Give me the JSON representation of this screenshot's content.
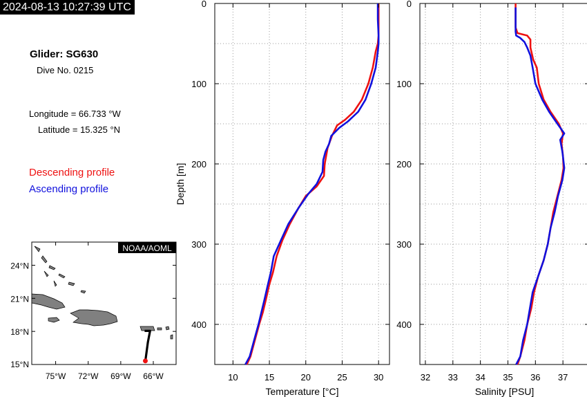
{
  "header": {
    "timestamp": "2024-08-13 10:27:39 UTC"
  },
  "info": {
    "glider": "Glider: SG630",
    "dive": "Dive No. 0215",
    "longitude": "Longitude = 66.733 °W",
    "latitude": "Latitude = 15.325 °N"
  },
  "legend": {
    "descending": "Descending profile",
    "ascending": "Ascending profile",
    "descending_color": "#ee1111",
    "ascending_color": "#1111dd"
  },
  "map": {
    "credit": "NOAA/AOML",
    "lat_ticks": [
      "24°N",
      "21°N",
      "18°N",
      "15°N"
    ],
    "lon_ticks": [
      "75°W",
      "72°W",
      "69°W",
      "66°W"
    ],
    "lat_values": [
      24,
      21,
      18,
      15
    ],
    "lon_values": [
      -75,
      -72,
      -69,
      -66
    ],
    "lon_range": [
      -77.2,
      -63.9
    ],
    "lat_range": [
      15,
      26.1
    ],
    "land_color": "#808080",
    "track": [
      [
        -66.8,
        18.05
      ],
      [
        -66.3,
        18.05
      ],
      [
        -66.5,
        17.0
      ],
      [
        -66.733,
        15.325
      ]
    ],
    "glider_position": [
      -66.733,
      15.325
    ]
  },
  "chart_data": [
    {
      "type": "line",
      "xlabel": "Temperature [°C]",
      "ylabel": "Depth [m]",
      "xlim": [
        7.5,
        31.5
      ],
      "ylim": [
        450,
        0
      ],
      "xticks": [
        10,
        15,
        20,
        25,
        30
      ],
      "yticks": [
        0,
        100,
        200,
        300,
        400
      ],
      "grid": true,
      "series": [
        {
          "name": "Descending profile",
          "color": "#ee1111",
          "points": [
            [
              30.0,
              0
            ],
            [
              30.0,
              20
            ],
            [
              30.0,
              40
            ],
            [
              29.9,
              50
            ],
            [
              29.6,
              60
            ],
            [
              29.2,
              80
            ],
            [
              28.6,
              100
            ],
            [
              27.7,
              120
            ],
            [
              26.6,
              135
            ],
            [
              25.4,
              145
            ],
            [
              24.3,
              152
            ],
            [
              23.6,
              165
            ],
            [
              23.0,
              180
            ],
            [
              22.8,
              190
            ],
            [
              22.6,
              200
            ],
            [
              22.5,
              215
            ],
            [
              21.5,
              228
            ],
            [
              20.0,
              240
            ],
            [
              19.0,
              255
            ],
            [
              17.8,
              275
            ],
            [
              16.8,
              295
            ],
            [
              16.0,
              315
            ],
            [
              15.5,
              335
            ],
            [
              15.0,
              350
            ],
            [
              14.5,
              370
            ],
            [
              14.1,
              385
            ],
            [
              13.6,
              400
            ],
            [
              13.0,
              420
            ],
            [
              12.4,
              440
            ],
            [
              11.9,
              455
            ]
          ]
        },
        {
          "name": "Ascending profile",
          "color": "#1111dd",
          "points": [
            [
              29.9,
              0
            ],
            [
              29.9,
              20
            ],
            [
              30.0,
              40
            ],
            [
              30.0,
              50
            ],
            [
              29.9,
              60
            ],
            [
              29.6,
              80
            ],
            [
              29.0,
              100
            ],
            [
              28.2,
              120
            ],
            [
              27.2,
              135
            ],
            [
              25.8,
              147
            ],
            [
              24.6,
              155
            ],
            [
              23.5,
              165
            ],
            [
              23.2,
              175
            ],
            [
              22.7,
              185
            ],
            [
              22.4,
              195
            ],
            [
              22.3,
              210
            ],
            [
              21.5,
              225
            ],
            [
              20.3,
              238
            ],
            [
              19.0,
              255
            ],
            [
              17.6,
              275
            ],
            [
              16.6,
              295
            ],
            [
              15.6,
              315
            ],
            [
              15.2,
              335
            ],
            [
              14.8,
              350
            ],
            [
              14.3,
              370
            ],
            [
              13.9,
              385
            ],
            [
              13.5,
              400
            ],
            [
              12.9,
              420
            ],
            [
              12.3,
              440
            ],
            [
              11.7,
              455
            ]
          ]
        }
      ]
    },
    {
      "type": "line",
      "xlabel": "Salinity [PSU]",
      "ylabel": "",
      "xlim": [
        31.8,
        37.95
      ],
      "ylim": [
        450,
        0
      ],
      "xticks": [
        32,
        33,
        34,
        35,
        36,
        37
      ],
      "yticks": [
        0,
        100,
        200,
        300,
        400
      ],
      "grid": true,
      "series": [
        {
          "name": "Descending profile",
          "color": "#ee1111",
          "points": [
            [
              35.28,
              0
            ],
            [
              35.28,
              30
            ],
            [
              35.35,
              37
            ],
            [
              35.7,
              40
            ],
            [
              35.82,
              45
            ],
            [
              35.82,
              55
            ],
            [
              35.92,
              70
            ],
            [
              36.05,
              80
            ],
            [
              36.12,
              100
            ],
            [
              36.3,
              120
            ],
            [
              36.55,
              135
            ],
            [
              36.85,
              150
            ],
            [
              37.0,
              162
            ],
            [
              36.95,
              175
            ],
            [
              37.0,
              190
            ],
            [
              37.02,
              205
            ],
            [
              36.95,
              220
            ],
            [
              36.8,
              240
            ],
            [
              36.65,
              260
            ],
            [
              36.55,
              280
            ],
            [
              36.45,
              300
            ],
            [
              36.3,
              320
            ],
            [
              36.1,
              340
            ],
            [
              35.95,
              360
            ],
            [
              35.85,
              380
            ],
            [
              35.7,
              400
            ],
            [
              35.6,
              420
            ],
            [
              35.45,
              440
            ],
            [
              35.35,
              455
            ]
          ]
        },
        {
          "name": "Ascending profile",
          "color": "#1111dd",
          "points": [
            [
              35.28,
              5
            ],
            [
              35.28,
              35
            ],
            [
              35.3,
              40
            ],
            [
              35.45,
              43
            ],
            [
              35.6,
              48
            ],
            [
              35.7,
              55
            ],
            [
              35.82,
              65
            ],
            [
              35.9,
              80
            ],
            [
              36.0,
              100
            ],
            [
              36.25,
              120
            ],
            [
              36.5,
              135
            ],
            [
              36.8,
              150
            ],
            [
              37.05,
              162
            ],
            [
              36.9,
              170
            ],
            [
              36.98,
              185
            ],
            [
              37.05,
              205
            ],
            [
              36.98,
              220
            ],
            [
              36.82,
              240
            ],
            [
              36.7,
              260
            ],
            [
              36.55,
              280
            ],
            [
              36.45,
              300
            ],
            [
              36.3,
              320
            ],
            [
              36.1,
              340
            ],
            [
              35.9,
              360
            ],
            [
              35.8,
              380
            ],
            [
              35.7,
              400
            ],
            [
              35.55,
              420
            ],
            [
              35.45,
              440
            ],
            [
              35.3,
              455
            ]
          ]
        }
      ]
    }
  ]
}
